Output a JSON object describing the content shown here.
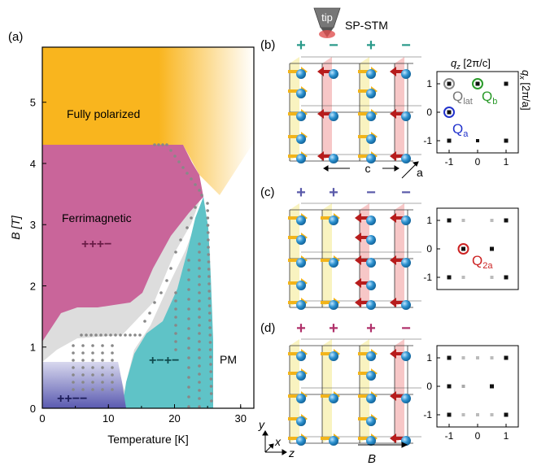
{
  "figure": {
    "panel_labels": {
      "a": "(a)",
      "b": "(b)",
      "c": "(c)",
      "d": "(d)"
    },
    "tip_label": "tip",
    "stm_label": "SP-STM",
    "colors": {
      "orange": "#f9b51e",
      "magenta": "#c9659a",
      "gray": "#dddddd",
      "teal": "#5fc3c7",
      "blue": "#6f6fbf",
      "red_dot": "#cc2222",
      "green_dot": "#2a9a2a",
      "blue_dot": "#2233cc"
    }
  },
  "chart_data": {
    "type": "area",
    "xlabel": "Temperature [K]",
    "ylabel": "B [T]",
    "xlim": [
      0,
      32
    ],
    "ylim": [
      0,
      5.9
    ],
    "xticks": [
      "0",
      "10",
      "20",
      "30"
    ],
    "yticks": [
      "0",
      "1",
      "2",
      "3",
      "4",
      "5"
    ],
    "regions": [
      {
        "label": "Fully polarized",
        "color": "#f9b51e"
      },
      {
        "label": "Ferrimagnetic",
        "sign": "+++−",
        "color": "#c9659a"
      },
      {
        "label": "",
        "sign": "+−+−",
        "color": "#5fc3c7"
      },
      {
        "label": "",
        "sign": "++−−",
        "color": "#6f6fbf"
      },
      {
        "label": "PM",
        "color": "#ffffff"
      }
    ]
  },
  "panels": {
    "b": {
      "signs": [
        "+",
        "−",
        "+",
        "−"
      ],
      "axis_c": "c",
      "axis_a": "a",
      "q_labels": {
        "lat": "Q",
        "lat_sub": "lat",
        "b": "Q",
        "b_sub": "b",
        "a": "Q",
        "a_sub": "a"
      },
      "qz_label": "q",
      "qz_sub": "z",
      "qz_unit": " [2π/c]",
      "qx_label": "q",
      "qx_sub": "x",
      "qx_unit": " [2π/a]",
      "yticks": [
        "1",
        "0",
        "-1"
      ],
      "xticks": [
        "-1",
        "0",
        "1"
      ]
    },
    "c": {
      "signs": [
        "+",
        "+",
        "−",
        "−"
      ],
      "q_label": "Q",
      "q_sub": "2a",
      "yticks": [
        "1",
        "0",
        "-1"
      ]
    },
    "d": {
      "signs": [
        "+",
        "+",
        "+",
        "−"
      ],
      "yticks": [
        "1",
        "0",
        "-1"
      ],
      "xticks": [
        "-1",
        "0",
        "1"
      ]
    },
    "axes": {
      "y": "y",
      "x": "x",
      "z": "z",
      "B": "B"
    }
  }
}
